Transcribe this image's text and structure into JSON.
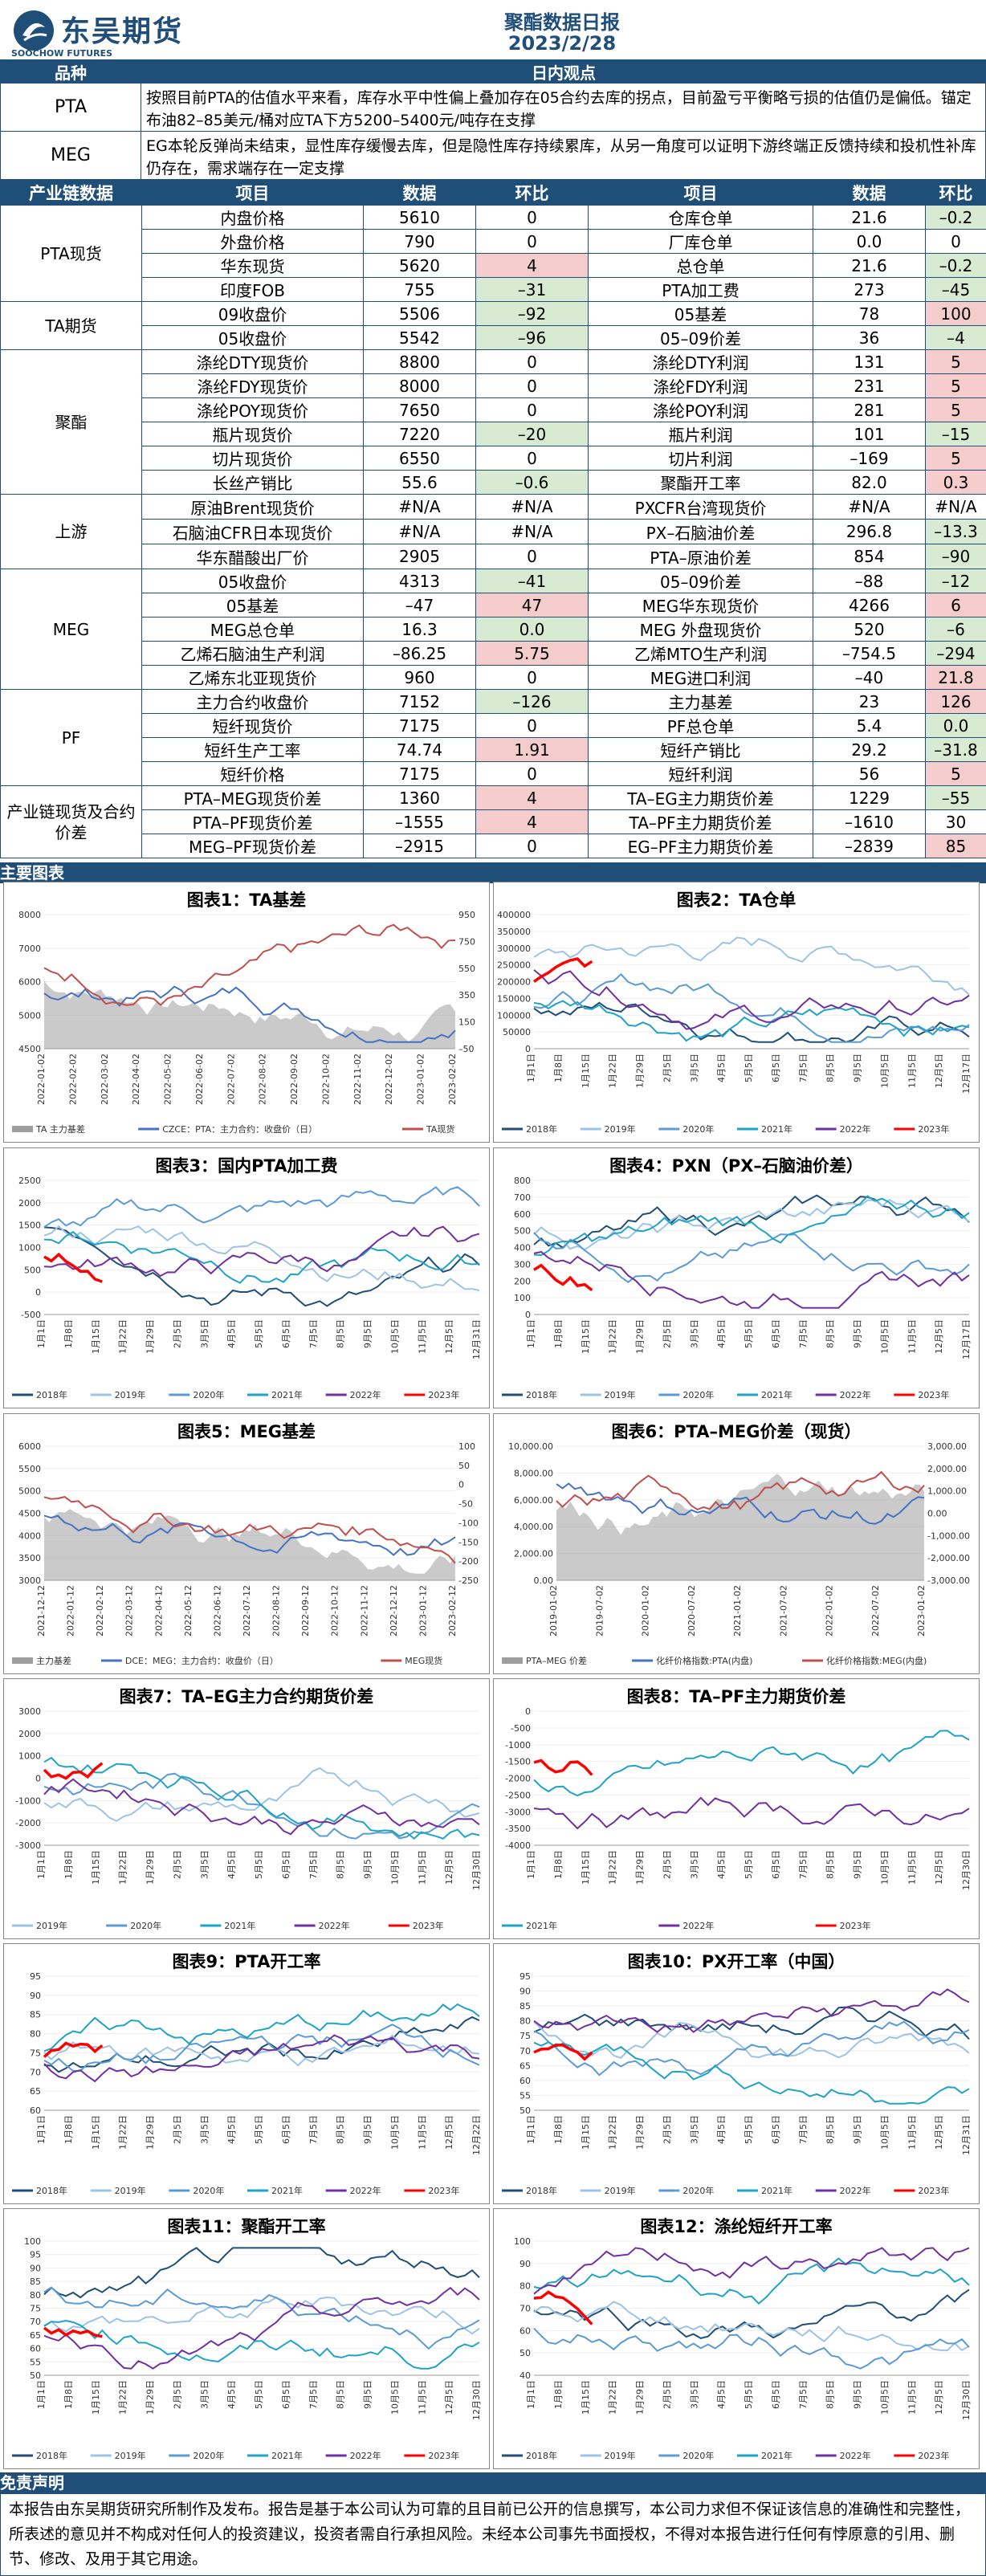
{
  "header": {
    "logo_text": "东吴期货",
    "logo_sub": "SOOCHOW FUTURES",
    "title": "聚酯数据日报",
    "date": "2023/2/28"
  },
  "overview_header": {
    "col1": "品种",
    "col2": "日内观点"
  },
  "overview": [
    {
      "label": "PTA",
      "text": "按照目前PTA的估值水平来看，库存水平中性偏上叠加存在05合约去库的拐点，目前盈亏平衡略亏损的估值仍是偏低。锚定布油82–85美元/桶对应TA下方5200–5400元/吨存在支撑"
    },
    {
      "label": "MEG",
      "text": "EG本轮反弹尚未结束，显性库存缓慢去库，但是隐性库存持续累库，从另一角度可以证明下游终端正反馈持续和投机性补库仍存在，需求端存在一定支撑"
    }
  ],
  "table": {
    "header": [
      "产业链数据",
      "项目",
      "数据",
      "环比",
      "项目",
      "数据",
      "环比"
    ],
    "categories": [
      "PTA现货",
      "TA期货",
      "聚酯",
      "上游",
      "MEG",
      "PF",
      "产业链现货及合约价差"
    ],
    "rows": [
      [
        "内盘价格",
        "5610",
        "0",
        "仓库仓单",
        "21.6",
        "–0.2"
      ],
      [
        "外盘价格",
        "790",
        "0",
        "厂库仓单",
        "0.0",
        "0"
      ],
      [
        "华东现货",
        "5620",
        "4",
        "总仓单",
        "21.6",
        "–0.2"
      ],
      [
        "印度FOB",
        "755",
        "–31",
        "PTA加工费",
        "273",
        "–45"
      ],
      [
        "09收盘价",
        "5506",
        "–92",
        "05基差",
        "78",
        "100"
      ],
      [
        "05收盘价",
        "5542",
        "–96",
        "05–09价差",
        "36",
        "–4"
      ],
      [
        "涤纶DTY现货价",
        "8800",
        "0",
        "涤纶DTY利润",
        "131",
        "5"
      ],
      [
        "涤纶FDY现货价",
        "8000",
        "0",
        "涤纶FDY利润",
        "231",
        "5"
      ],
      [
        "涤纶POY现货价",
        "7650",
        "0",
        "涤纶POY利润",
        "281",
        "5"
      ],
      [
        "瓶片现货价",
        "7220",
        "–20",
        "瓶片利润",
        "101",
        "–15"
      ],
      [
        "切片现货价",
        "6550",
        "0",
        "切片利润",
        "–169",
        "5"
      ],
      [
        "长丝产销比",
        "55.6",
        "–0.6",
        "聚酯开工率",
        "82.0",
        "0.3"
      ],
      [
        "原油Brent现货价",
        "#N/A",
        "#N/A",
        "PXCFR台湾现货价",
        "#N/A",
        "#N/A"
      ],
      [
        "石脑油CFR日本现货价",
        "#N/A",
        "#N/A",
        "PX–石脑油价差",
        "296.8",
        "–13.3"
      ],
      [
        "华东醋酸出厂价",
        "2905",
        "0",
        "PTA–原油价差",
        "854",
        "–90"
      ],
      [
        "05收盘价",
        "4313",
        "–41",
        "05–09价差",
        "–88",
        "–12"
      ],
      [
        "05基差",
        "–47",
        "47",
        "MEG华东现货价",
        "4266",
        "6"
      ],
      [
        "MEG总仓单",
        "16.3",
        "0.0",
        "MEG 外盘现货价",
        "520",
        "–6"
      ],
      [
        "乙烯石脑油生产利润",
        "–86.25",
        "5.75",
        "乙烯MTO生产利润",
        "–754.5",
        "–294"
      ],
      [
        "乙烯东北亚现货价",
        "960",
        "0",
        "MEG进口利润",
        "–40",
        "21.8"
      ],
      [
        "主力合约收盘价",
        "7152",
        "–126",
        "主力基差",
        "23",
        "126"
      ],
      [
        "短纤现货价",
        "7175",
        "0",
        "PF总仓单",
        "5.4",
        "0.0"
      ],
      [
        "短纤生产工率",
        "74.74",
        "1.91",
        "短纤产销比",
        "29.2",
        "–31.8"
      ],
      [
        "短纤价格",
        "7175",
        "0",
        "短纤利润",
        "56",
        "5"
      ],
      [
        "PTA–MEG现货价差",
        "1360",
        "4",
        "TA–EG主力期货价差",
        "1229",
        "–55"
      ],
      [
        "PTA–PF现货价差",
        "–1555",
        "4",
        "TA–PF主力期货价差",
        "–1610",
        "30"
      ],
      [
        "MEG–PF现货价差",
        "–2915",
        "0",
        "EG–PF主力期货价差",
        "–2839",
        "85"
      ]
    ]
  },
  "charts_header": "主要图表",
  "colors": {
    "navy": "#1f4e79",
    "red_cell": "#f4cccc",
    "green_cell": "#d9ead3",
    "y2018": "#1f4e79",
    "y2019": "#9dc3e6",
    "y2020": "#5b9bd5",
    "y2021": "#1fa3c7",
    "y2022": "#7030a0",
    "y2023": "#ff0000"
  },
  "charts": [
    {
      "title": "图表1：TA基差",
      "yl": [
        "8000",
        "7000",
        "6000",
        "5000",
        "4500"
      ],
      "yr": [
        "950",
        "750",
        "550",
        "350",
        "150",
        "–50"
      ],
      "xl": [
        "2022-01-02",
        "2022-02-02",
        "2022-03-02",
        "2022-04-02",
        "2022-05-02",
        "2022-06-02",
        "2022-07-02",
        "2022-08-02",
        "2022-09-02",
        "2022-10-02",
        "2022-11-02",
        "2022-12-02",
        "2023-01-02",
        "2023-02-02"
      ],
      "legend": [
        "TA  主力基差",
        "CZCE：PTA：主力合约：收盘价（日）",
        "TA现货"
      ]
    },
    {
      "title": "图表2：TA仓单",
      "yl": [
        "400000",
        "350000",
        "300000",
        "250000",
        "200000",
        "150000",
        "100000",
        "50000",
        "0"
      ],
      "yr": [],
      "xl": [
        "1月1日",
        "1月8日",
        "1月15日",
        "1月22日",
        "1月29日",
        "2月5日",
        "3月5日",
        "4月5日",
        "5月5日",
        "6月5日",
        "7月5日",
        "8月5日",
        "9月5日",
        "10月5日",
        "11月5日",
        "12月5日",
        "12月17日"
      ],
      "legend": [
        "2018年",
        "2019年",
        "2020年",
        "2021年",
        "2022年",
        "2023年"
      ]
    },
    {
      "title": "图表3：国内PTA加工费",
      "yl": [
        "2500",
        "2000",
        "1500",
        "1000",
        "500",
        "0",
        "-500"
      ],
      "yr": [],
      "xl": [
        "1月1日",
        "1月8日",
        "1月15日",
        "1月22日",
        "1月29日",
        "2月5日",
        "3月5日",
        "4月5日",
        "5月5日",
        "6月5日",
        "7月5日",
        "8月5日",
        "9月5日",
        "10月5日",
        "11月5日",
        "12月5日",
        "12月31日"
      ],
      "legend": [
        "2018年",
        "2019年",
        "2020年",
        "2021年",
        "2022年",
        "2023年"
      ]
    },
    {
      "title": "图表4：PXN（PX–石脑油价差）",
      "yl": [
        "800",
        "700",
        "600",
        "500",
        "400",
        "300",
        "200",
        "100",
        "0"
      ],
      "yr": [],
      "xl": [
        "1月1日",
        "1月8日",
        "1月15日",
        "1月22日",
        "1月29日",
        "2月5日",
        "3月5日",
        "4月5日",
        "5月5日",
        "6月5日",
        "7月5日",
        "8月5日",
        "9月5日",
        "10月5日",
        "11月5日",
        "12月5日",
        "12月17日"
      ],
      "legend": [
        "2018年",
        "2019年",
        "2020年",
        "2021年",
        "2022年",
        "2023年"
      ]
    },
    {
      "title": "图表5：MEG基差",
      "yl": [
        "6000",
        "5500",
        "5000",
        "4500",
        "4000",
        "3500",
        "3000"
      ],
      "yr": [
        "100",
        "50",
        "0",
        "-50",
        "-100",
        "-150",
        "-200",
        "-250"
      ],
      "xl": [
        "2021-12-12",
        "2022-01-12",
        "2022-02-12",
        "2022-03-12",
        "2022-04-12",
        "2022-05-12",
        "2022-06-12",
        "2022-07-12",
        "2022-08-12",
        "2022-09-12",
        "2022-10-12",
        "2022-11-12",
        "2022-12-12",
        "2023-01-12",
        "2023-02-12"
      ],
      "legend": [
        "主力基差",
        "DCE：MEG：主力合约：收盘价（日）",
        "MEG现货"
      ]
    },
    {
      "title": "图表6：PTA–MEG价差（现货）",
      "yl": [
        "10,000.00",
        "8,000.00",
        "6,000.00",
        "4,000.00",
        "2,000.00",
        "0.00"
      ],
      "yr": [
        "3,000.00",
        "2,000.00",
        "1,000.00",
        "0.00",
        "-1,000.00",
        "-2,000.00",
        "-3,000.00"
      ],
      "xl": [
        "2019-01-02",
        "2019-07-02",
        "2020-01-02",
        "2020-07-02",
        "2021-01-02",
        "2021-07-02",
        "2022-01-02",
        "2022-07-02",
        "2023-01-02"
      ],
      "legend": [
        "PTA–MEG 价差",
        "化纤价格指数:PTA(内盘)",
        "化纤价格指数:MEG(内盘)"
      ]
    },
    {
      "title": "图表7：TA–EG主力合约期货价差",
      "yl": [
        "3000",
        "2000",
        "1000",
        "0",
        "-1000",
        "-2000",
        "-3000"
      ],
      "yr": [],
      "xl": [
        "1月1日",
        "1月8日",
        "1月15日",
        "1月22日",
        "1月29日",
        "2月5日",
        "3月5日",
        "4月5日",
        "5月5日",
        "6月5日",
        "7月5日",
        "8月5日",
        "9月5日",
        "10月5日",
        "11月5日",
        "12月5日",
        "12月30日"
      ],
      "legend": [
        "2019年",
        "2020年",
        "2021年",
        "2022年",
        "2023年"
      ]
    },
    {
      "title": "图表8：TA–PF主力期货价差",
      "yl": [
        "0",
        "-500",
        "-1000",
        "-1500",
        "-2000",
        "-2500",
        "-3000",
        "-3500",
        "-4000"
      ],
      "yr": [],
      "xl": [
        "1月1日",
        "1月8日",
        "1月15日",
        "1月22日",
        "1月29日",
        "2月5日",
        "3月5日",
        "4月5日",
        "5月5日",
        "6月5日",
        "7月5日",
        "8月5日",
        "9月5日",
        "10月5日",
        "11月5日",
        "12月5日",
        "12月30日"
      ],
      "legend": [
        "2021年",
        "2022年",
        "2023年"
      ]
    },
    {
      "title": "图表9：PTA开工率",
      "yl": [
        "95",
        "90",
        "85",
        "80",
        "75",
        "70",
        "65",
        "60"
      ],
      "yr": [],
      "xl": [
        "1月1日",
        "1月8日",
        "1月15日",
        "1月22日",
        "1月29日",
        "2月5日",
        "3月5日",
        "4月5日",
        "5月5日",
        "6月5日",
        "7月5日",
        "8月5日",
        "9月5日",
        "10月5日",
        "11月5日",
        "12月5日",
        "12月22日"
      ],
      "legend": [
        "2018年",
        "2019年",
        "2020年",
        "2021年",
        "2022年",
        "2023年"
      ]
    },
    {
      "title": "图表10：PX开工率（中国）",
      "yl": [
        "95",
        "90",
        "85",
        "80",
        "75",
        "70",
        "65",
        "60",
        "55",
        "50"
      ],
      "yr": [],
      "xl": [
        "1月1日",
        "1月8日",
        "1月15日",
        "1月22日",
        "1月29日",
        "2月5日",
        "3月5日",
        "4月5日",
        "5月5日",
        "6月5日",
        "7月5日",
        "8月5日",
        "9月5日",
        "10月5日",
        "11月5日",
        "12月5日",
        "12月31日"
      ],
      "legend": [
        "2018年",
        "2019年",
        "2020年",
        "2021年",
        "2022年",
        "2023年"
      ]
    },
    {
      "title": "图表11：聚酯开工率",
      "yl": [
        "100",
        "95",
        "90",
        "85",
        "80",
        "75",
        "70",
        "65",
        "60",
        "55",
        "50"
      ],
      "yr": [],
      "xl": [
        "1月1日",
        "1月8日",
        "1月15日",
        "1月22日",
        "1月29日",
        "2月5日",
        "3月5日",
        "4月5日",
        "5月5日",
        "6月5日",
        "7月5日",
        "8月5日",
        "9月5日",
        "10月5日",
        "11月5日",
        "12月5日",
        "12月30日"
      ],
      "legend": [
        "2018年",
        "2019年",
        "2020年",
        "2021年",
        "2022年",
        "2023年"
      ]
    },
    {
      "title": "图表12：涤纶短纤开工率",
      "yl": [
        "100",
        "90",
        "80",
        "70",
        "60",
        "50",
        "40"
      ],
      "yr": [],
      "xl": [
        "1月1日",
        "1月8日",
        "1月15日",
        "1月22日",
        "1月29日",
        "2月5日",
        "3月5日",
        "4月5日",
        "5月5日",
        "6月5日",
        "7月5日",
        "8月5日",
        "9月5日",
        "10月5日",
        "11月5日",
        "12月5日",
        "12月30日"
      ],
      "legend": [
        "2018年",
        "2019年",
        "2020年",
        "2021年",
        "2022年",
        "2023年"
      ]
    }
  ],
  "disclaimer_header": "免责声明",
  "disclaimer": "本报告由东吴期货研究所制作及发布。报告是基于本公司认为可靠的且目前已公开的信息撰写，本公司力求但不保证该信息的准确性和完整性，所表述的意见并不构成对任何人的投资建议，投资者需自行承担风险。未经本公司事先书面授权，不得对本报告进行任何有悖原意的引用、删节、修改、及用于其它用途。"
}
